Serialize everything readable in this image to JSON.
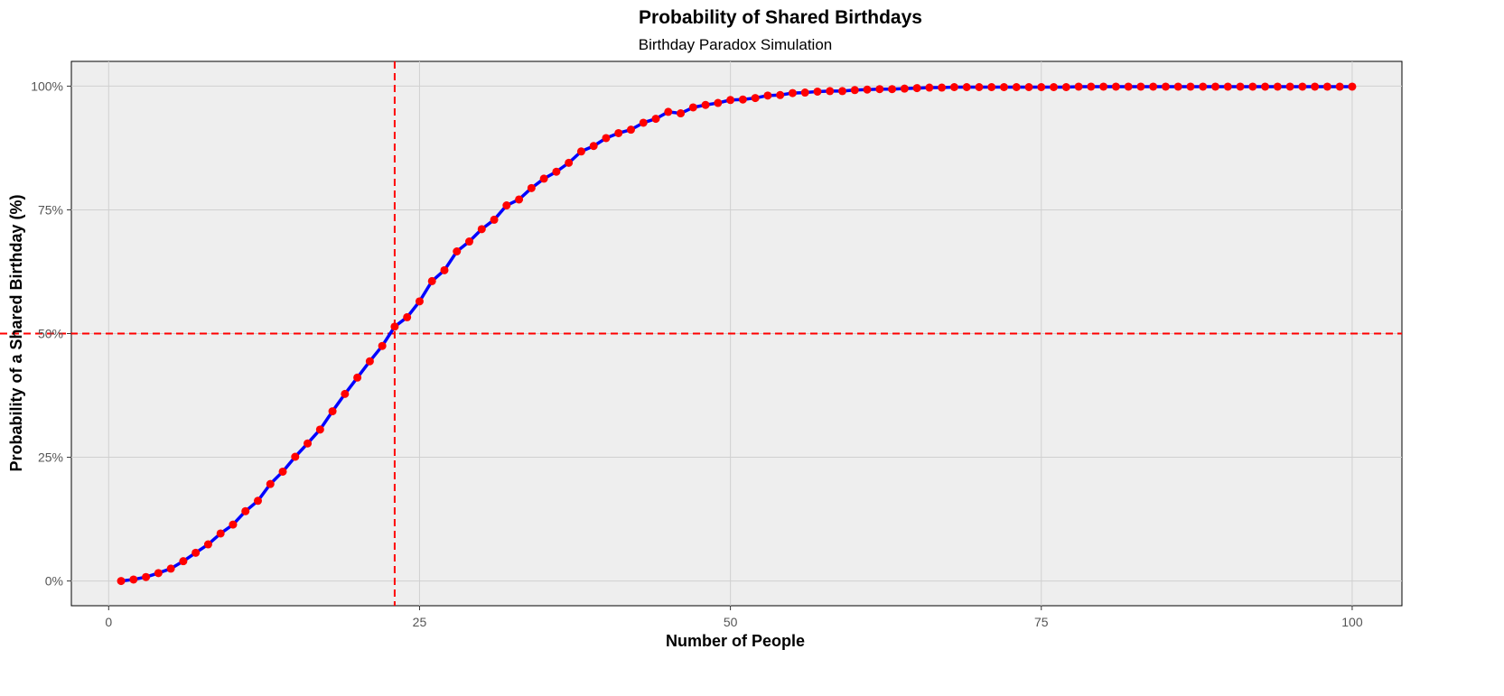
{
  "chart_data": {
    "type": "line",
    "title": "Probability of Shared Birthdays",
    "subtitle": "Birthday Paradox Simulation",
    "xlabel": "Number of People",
    "ylabel": "Probability of a Shared Birthday (%)",
    "xlim": [
      -3,
      104
    ],
    "ylim": [
      -0.05,
      1.05
    ],
    "x_ticks": [
      0,
      25,
      50,
      75,
      100
    ],
    "x_tick_labels": [
      "0",
      "25",
      "50",
      "75",
      "100"
    ],
    "y_ticks": [
      0,
      0.25,
      0.5,
      0.75,
      1.0
    ],
    "y_tick_labels": [
      "0%",
      "25%",
      "50%",
      "75%",
      "100%"
    ],
    "grid": true,
    "reference_lines": {
      "vertical_x": 23,
      "horizontal_y": 0.5
    },
    "colors": {
      "line": "#0000ff",
      "points": "#ff0000",
      "reference": "#ff0000",
      "panel": "#eeeeee",
      "grid": "#d0d0d0"
    },
    "series": [
      {
        "x": [
          1,
          2,
          3,
          4,
          5,
          6,
          7,
          8,
          9,
          10,
          11,
          12,
          13,
          14,
          15,
          16,
          17,
          18,
          19,
          20,
          21,
          22,
          23,
          24,
          25,
          26,
          27,
          28,
          29,
          30,
          31,
          32,
          33,
          34,
          35,
          36,
          37,
          38,
          39,
          40,
          41,
          42,
          43,
          44,
          45,
          46,
          47,
          48,
          49,
          50,
          51,
          52,
          53,
          54,
          55,
          56,
          57,
          58,
          59,
          60,
          61,
          62,
          63,
          64,
          65,
          66,
          67,
          68,
          69,
          70,
          71,
          72,
          73,
          74,
          75,
          76,
          77,
          78,
          79,
          80,
          81,
          82,
          83,
          84,
          85,
          86,
          87,
          88,
          89,
          90,
          91,
          92,
          93,
          94,
          95,
          96,
          97,
          98,
          99,
          100
        ],
        "values": [
          0.0,
          0.003,
          0.008,
          0.016,
          0.025,
          0.04,
          0.057,
          0.074,
          0.096,
          0.114,
          0.141,
          0.162,
          0.196,
          0.221,
          0.251,
          0.278,
          0.306,
          0.343,
          0.378,
          0.411,
          0.444,
          0.475,
          0.514,
          0.533,
          0.565,
          0.606,
          0.628,
          0.666,
          0.686,
          0.711,
          0.73,
          0.759,
          0.771,
          0.794,
          0.813,
          0.827,
          0.845,
          0.868,
          0.879,
          0.895,
          0.905,
          0.912,
          0.926,
          0.934,
          0.948,
          0.945,
          0.957,
          0.962,
          0.966,
          0.972,
          0.973,
          0.976,
          0.981,
          0.982,
          0.986,
          0.987,
          0.989,
          0.99,
          0.99,
          0.992,
          0.993,
          0.994,
          0.994,
          0.995,
          0.996,
          0.997,
          0.997,
          0.998,
          0.998,
          0.998,
          0.998,
          0.998,
          0.998,
          0.998,
          0.998,
          0.998,
          0.998,
          0.999,
          0.999,
          0.999,
          0.999,
          0.999,
          0.999,
          0.999,
          0.999,
          0.999,
          0.999,
          0.999,
          0.999,
          0.999,
          0.999,
          0.999,
          0.999,
          0.999,
          0.999,
          0.999,
          0.999,
          0.999,
          0.999,
          0.999
        ]
      }
    ]
  }
}
